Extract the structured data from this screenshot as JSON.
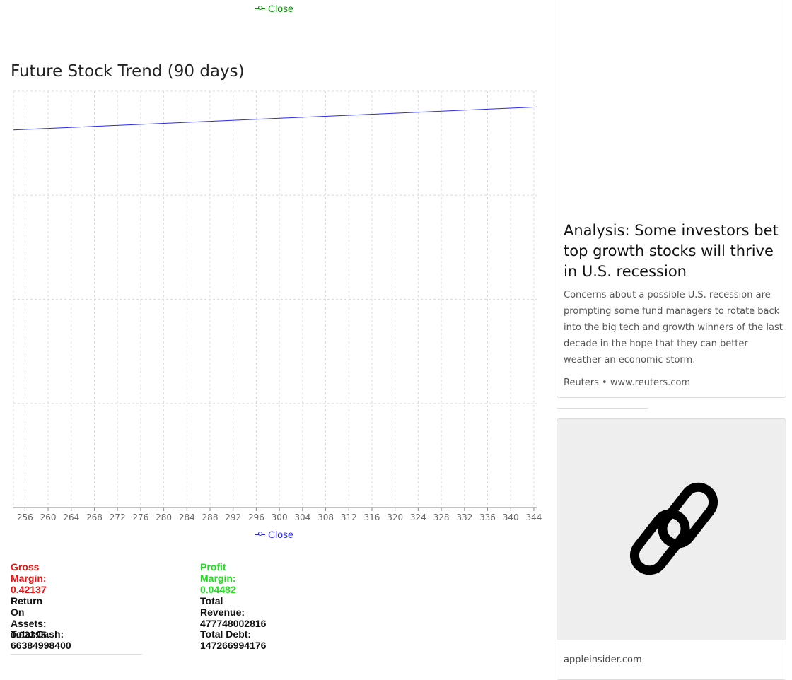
{
  "chart": {
    "legend_top": "Close",
    "legend_bottom": "Close",
    "title": "Future Stock Trend (90 days)"
  },
  "chart_data": {
    "type": "line",
    "title": "Future Stock Trend (90 days)",
    "xlabel": "",
    "ylabel": "",
    "x_ticks": [
      256,
      260,
      264,
      268,
      272,
      276,
      280,
      284,
      288,
      292,
      296,
      300,
      304,
      308,
      312,
      316,
      320,
      324,
      328,
      332,
      336,
      340,
      344
    ],
    "xlim": [
      254,
      344.5
    ],
    "grid": true,
    "series": [
      {
        "name": "Close",
        "color": "#2a2ae8",
        "x": [
          254,
          344.5
        ],
        "y": [
          0.907,
          0.962
        ]
      }
    ],
    "ylim": [
      0,
      1
    ],
    "y_ticks_hidden": true
  },
  "metrics": {
    "gross_margin": "Gross Margin: 0.42137",
    "profit_margin": "Profit Margin: 0.04482",
    "return_on_assets": "Return On Assets: 0.03395",
    "total_revenue": "Total Revenue: 477748002816",
    "total_cash": "Total Cash: 66384998400",
    "total_debt": "Total Debt: 147266994176",
    "colors": {
      "gross_margin": "#ee1111",
      "profit_margin": "#22dd22"
    }
  },
  "news": {
    "title": "Analysis: Some investors bet top growth stocks will thrive in U.S. recession",
    "description": "Concerns about a possible U.S. recession are prompting some fund managers to rotate back into the big tech and growth winners of the last decade in the hope that they can better weather an economic storm.",
    "source": "Reuters • www.reuters.com"
  },
  "link_card": {
    "icon": "link-icon",
    "domain": "appleinsider.com"
  }
}
